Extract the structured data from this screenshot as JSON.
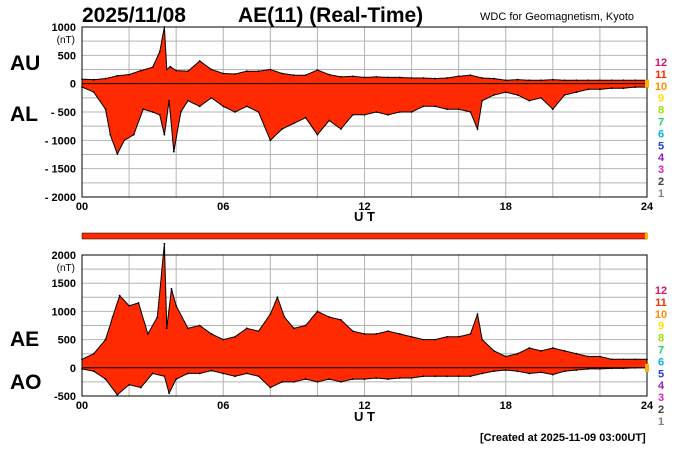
{
  "header": {
    "date": "2025/11/08",
    "title": "AE(11) (Real-Time)",
    "source": "WDC for Geomagnetism, Kyoto"
  },
  "footer": {
    "created": "[Created at 2025-11-09 03:00UT]"
  },
  "colors": {
    "fill": "#ff2a00",
    "outline": "#000000",
    "grid": "#b4b4b4",
    "dots": "#ffb000"
  },
  "chart_data": [
    {
      "type": "area",
      "title": "",
      "xlabel": "U T",
      "ylabel": "(nT)",
      "x_ticks": [
        "00",
        "06",
        "12",
        "18",
        "24"
      ],
      "xlim": [
        0,
        24
      ],
      "ylim": [
        -2000,
        1000
      ],
      "y_ticks": [
        "1000",
        "500",
        "0",
        "- 500",
        "- 1000",
        "- 1500",
        "- 2000"
      ],
      "side_labels": [
        "AU",
        "AL"
      ],
      "legend": [
        "12",
        "11",
        "10",
        "9",
        "8",
        "7",
        "6",
        "5",
        "4",
        "3",
        "2",
        "1"
      ],
      "legend_colors": [
        "#e0106b",
        "#ff2a00",
        "#ff8c00",
        "#ffe000",
        "#a0e000",
        "#20d070",
        "#00b0e0",
        "#2040e0",
        "#9020c0",
        "#e020c0",
        "#404040",
        "#808080",
        "#c0c0c0"
      ],
      "series": [
        {
          "name": "AU",
          "x": [
            0,
            0.5,
            1,
            1.5,
            2,
            2.5,
            3,
            3.3,
            3.5,
            3.6,
            3.75,
            4,
            4.5,
            5,
            5.5,
            6,
            6.5,
            7,
            7.5,
            8,
            8.5,
            9,
            9.5,
            10,
            10.5,
            11,
            11.5,
            12,
            12.5,
            13,
            13.5,
            14,
            14.5,
            15,
            15.5,
            16,
            16.5,
            17,
            17.5,
            18,
            18.5,
            19,
            19.5,
            20,
            20.5,
            21,
            21.5,
            22,
            22.5,
            23,
            23.5,
            24
          ],
          "values": [
            80,
            70,
            90,
            140,
            160,
            230,
            290,
            560,
            1000,
            250,
            300,
            230,
            220,
            400,
            250,
            180,
            170,
            220,
            220,
            250,
            180,
            150,
            150,
            240,
            160,
            120,
            130,
            110,
            120,
            110,
            110,
            100,
            100,
            90,
            100,
            130,
            150,
            100,
            90,
            60,
            70,
            60,
            60,
            70,
            60,
            60,
            60,
            60,
            60,
            60,
            60,
            60
          ]
        },
        {
          "name": "AL",
          "x": [
            0,
            0.5,
            1,
            1.2,
            1.5,
            1.8,
            2.2,
            2.6,
            3,
            3.3,
            3.5,
            3.7,
            3.9,
            4.2,
            4.5,
            5,
            5.5,
            6,
            6.5,
            7,
            7.5,
            8,
            8.5,
            9,
            9.5,
            10,
            10.5,
            11,
            11.5,
            12,
            12.5,
            13,
            13.5,
            14,
            14.5,
            15,
            15.5,
            16,
            16.5,
            16.8,
            17,
            17.5,
            18,
            18.5,
            19,
            19.5,
            20,
            20.5,
            21,
            21.5,
            22,
            22.5,
            23,
            23.5,
            24
          ],
          "values": [
            -60,
            -150,
            -450,
            -900,
            -1240,
            -1000,
            -900,
            -450,
            -500,
            -550,
            -900,
            -300,
            -1200,
            -500,
            -300,
            -400,
            -250,
            -400,
            -500,
            -400,
            -500,
            -1000,
            -800,
            -700,
            -600,
            -900,
            -650,
            -800,
            -550,
            -550,
            -500,
            -550,
            -500,
            -500,
            -400,
            -400,
            -450,
            -450,
            -500,
            -800,
            -300,
            -200,
            -150,
            -200,
            -300,
            -250,
            -450,
            -200,
            -150,
            -100,
            -100,
            -80,
            -80,
            -60,
            -60
          ]
        }
      ]
    },
    {
      "type": "area",
      "title": "",
      "xlabel": "U T",
      "ylabel": "(nT)",
      "x_ticks": [
        "00",
        "06",
        "12",
        "18",
        "24"
      ],
      "xlim": [
        0,
        24
      ],
      "ylim": [
        -500,
        2000
      ],
      "y_ticks": [
        "2000",
        "1500",
        "1000",
        "500",
        "0",
        "-500"
      ],
      "side_labels": [
        "AE",
        "AO"
      ],
      "legend": [
        "12",
        "11",
        "10",
        "9",
        "8",
        "7",
        "6",
        "5",
        "4",
        "3",
        "2",
        "1"
      ],
      "legend_colors": [
        "#e0106b",
        "#ff2a00",
        "#ff8c00",
        "#ffe000",
        "#a0e000",
        "#20d070",
        "#00b0e0",
        "#2040e0",
        "#9020c0",
        "#e020c0",
        "#404040",
        "#808080",
        "#c0c0c0"
      ],
      "series": [
        {
          "name": "AE",
          "x": [
            0,
            0.5,
            1,
            1.3,
            1.6,
            2,
            2.4,
            2.8,
            3.2,
            3.5,
            3.6,
            3.8,
            4,
            4.5,
            5,
            5.5,
            6,
            6.5,
            7,
            7.5,
            8,
            8.3,
            8.6,
            9,
            9.5,
            10,
            10.5,
            11,
            11.5,
            12,
            12.5,
            13,
            13.5,
            14,
            14.5,
            15,
            15.5,
            16,
            16.5,
            16.8,
            17,
            17.5,
            18,
            18.5,
            19,
            19.5,
            20,
            20.5,
            21,
            21.5,
            22,
            22.5,
            23,
            23.5,
            24
          ],
          "values": [
            150,
            250,
            500,
            900,
            1280,
            1100,
            1150,
            600,
            900,
            2200,
            700,
            1400,
            1100,
            700,
            750,
            600,
            500,
            550,
            700,
            650,
            950,
            1250,
            900,
            700,
            750,
            1000,
            900,
            850,
            650,
            600,
            600,
            650,
            600,
            550,
            500,
            500,
            550,
            550,
            600,
            950,
            500,
            300,
            200,
            250,
            350,
            300,
            350,
            300,
            250,
            200,
            200,
            150,
            150,
            150,
            150
          ]
        },
        {
          "name": "AO",
          "x": [
            0,
            0.5,
            1,
            1.5,
            2,
            2.5,
            3,
            3.5,
            3.7,
            4,
            4.5,
            5,
            5.5,
            6,
            6.5,
            7,
            7.5,
            8,
            8.5,
            9,
            9.5,
            10,
            10.5,
            11,
            11.5,
            12,
            12.5,
            13,
            13.5,
            14,
            14.5,
            15,
            15.5,
            16,
            16.5,
            17,
            17.5,
            18,
            18.5,
            19,
            19.5,
            20,
            20.5,
            21,
            21.5,
            22,
            22.5,
            23,
            23.5,
            24
          ],
          "values": [
            -20,
            -60,
            -200,
            -480,
            -300,
            -350,
            -100,
            -150,
            -450,
            -200,
            -100,
            -100,
            -50,
            -100,
            -150,
            -100,
            -150,
            -350,
            -250,
            -250,
            -200,
            -250,
            -200,
            -250,
            -200,
            -200,
            -180,
            -200,
            -180,
            -180,
            -150,
            -150,
            -150,
            -150,
            -150,
            -100,
            -60,
            -40,
            -60,
            -100,
            -80,
            -120,
            -60,
            -40,
            -20,
            -20,
            -10,
            -10,
            0,
            0
          ]
        }
      ]
    }
  ]
}
